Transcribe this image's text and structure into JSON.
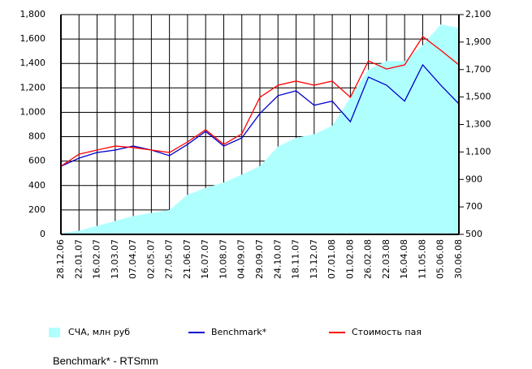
{
  "chart_data": {
    "type": "area-line",
    "categories": [
      "28.12.06",
      "22.01.07",
      "16.02.07",
      "13.03.07",
      "07.04.07",
      "02.05.07",
      "27.05.07",
      "21.06.07",
      "16.07.07",
      "10.08.07",
      "04.09.07",
      "29.09.07",
      "24.10.07",
      "18.11.07",
      "13.12.07",
      "07.01.08",
      "01.02.08",
      "26.02.08",
      "22.03.08",
      "16.04.08",
      "11.05.08",
      "05.06.08",
      "30.06.08"
    ],
    "series": [
      {
        "name": "СЧА, млн руб",
        "color": "#b0ffff",
        "kind": "area",
        "axis": "y",
        "values": [
          10,
          30,
          70,
          110,
          150,
          175,
          200,
          325,
          380,
          425,
          490,
          560,
          720,
          790,
          820,
          890,
          1120,
          1350,
          1420,
          1420,
          1550,
          1720,
          1690
        ]
      },
      {
        "name": "Benchmark*",
        "color": "#0000cc",
        "kind": "line",
        "axis": "y2",
        "values": [
          996,
          1055,
          1096,
          1114,
          1143,
          1114,
          1073,
          1155,
          1250,
          1143,
          1202,
          1380,
          1510,
          1545,
          1440,
          1470,
          1320,
          1645,
          1586,
          1470,
          1734,
          1586,
          1450
        ]
      },
      {
        "name": "Стоимость пая",
        "color": "#ff0000",
        "kind": "line",
        "axis": "y2",
        "values": [
          996,
          1084,
          1114,
          1143,
          1132,
          1114,
          1096,
          1173,
          1262,
          1155,
          1232,
          1498,
          1586,
          1616,
          1586,
          1616,
          1498,
          1763,
          1704,
          1734,
          1940,
          1840,
          1734
        ]
      }
    ],
    "ylim": [
      0,
      1800
    ],
    "yticks": [
      0,
      200,
      400,
      600,
      800,
      {
        "value": 1000,
        "label": "1,000"
      },
      {
        "value": 1200,
        "label": "1,200"
      },
      {
        "value": 1400,
        "label": "1,400"
      },
      {
        "value": 1600,
        "label": "1,600"
      },
      {
        "value": 1800,
        "label": "1,800"
      }
    ],
    "y2lim": [
      500,
      2100
    ],
    "y2ticks": [
      500,
      700,
      900,
      {
        "value": 1100,
        "label": "1,100"
      },
      {
        "value": 1300,
        "label": "1,300"
      },
      {
        "value": 1500,
        "label": "1,500"
      },
      {
        "value": 1700,
        "label": "1,700"
      },
      {
        "value": 1900,
        "label": "1,900"
      },
      {
        "value": 2100,
        "label": "2,100"
      }
    ],
    "grid": true,
    "footnote": "Benchmark* - RTSmm"
  }
}
